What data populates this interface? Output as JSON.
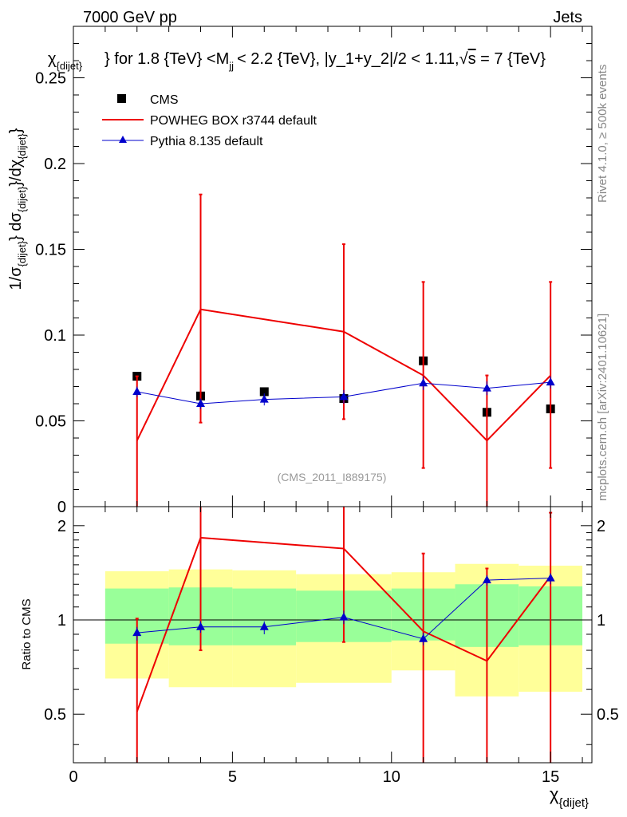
{
  "header": {
    "left": "7000 GeV pp",
    "right": "Jets"
  },
  "side": {
    "rivet": "Rivet 4.1.0, ≥ 500k events",
    "mcplots": "mcplots.cern.ch [arXiv:2401.10621]"
  },
  "chart_data": [
    {
      "id": "main",
      "type": "line",
      "title": "χ_{dijet} for 1.8 {TeV} <M_jj < 2.2 {TeV}, |y_1+y_2|/2 < 1.11, √s = 7 {TeV}",
      "title_parts": {
        "chi": "χ",
        "chi_sub": "{dijet}",
        "t1": "} for 1.8 {TeV} <M",
        "m_sub": "jj",
        "t2": "< 2.2 {TeV}, |y_1+y_2|/2 < 1.11,",
        "sqrt": "√",
        "s": "s",
        "t3": " = 7 {TeV}"
      },
      "ylabel": "1/σ_{dijet} dσ_{dijet}/dχ_{dijet}",
      "ylabel_parts": {
        "a": "1/σ",
        "a_sub": "{dijet}",
        "b": "} dσ",
        "b_sub": "{dijet}",
        "c": "}/dχ",
        "c_sub": "{dijet}",
        "d": "}"
      },
      "xlim": [
        0,
        16.3
      ],
      "ylim": [
        0,
        0.28
      ],
      "yticks": [
        0,
        0.05,
        0.1,
        0.15,
        0.2,
        0.25
      ],
      "ytick_labels": [
        "0",
        "0.05",
        "0.1",
        "0.15",
        "0.2",
        "0.25"
      ],
      "watermark": "(CMS_2011_I889175)",
      "legend": [
        "CMS",
        "POWHEG BOX r3744 default",
        "Pythia 8.135 default"
      ],
      "legend_position": "top-left",
      "series": [
        {
          "name": "CMS",
          "style": "markers",
          "color": "#000000",
          "x": [
            2,
            4,
            6,
            8.5,
            11,
            13,
            15
          ],
          "y": [
            0.076,
            0.0645,
            0.067,
            0.063,
            0.085,
            0.055,
            0.057
          ]
        },
        {
          "name": "POWHEG BOX r3744 default",
          "style": "line",
          "color": "#ee0000",
          "x": [
            2,
            4,
            8.5,
            11,
            13,
            15
          ],
          "y": [
            0.0385,
            0.115,
            0.102,
            0.0765,
            0.0385,
            0.0765
          ],
          "err_lo": [
            0.0,
            0.049,
            0.051,
            0.0225,
            0.0,
            0.0225
          ],
          "err_hi": [
            0.076,
            0.182,
            0.153,
            0.131,
            0.0765,
            0.131
          ]
        },
        {
          "name": "Pythia 8.135 default",
          "style": "line+triangles",
          "color": "#0000cc",
          "x": [
            2,
            4,
            6,
            8.5,
            11,
            13,
            15
          ],
          "y": [
            0.067,
            0.06,
            0.0625,
            0.064,
            0.072,
            0.069,
            0.0725
          ],
          "err_lo": [
            0.064,
            0.057,
            0.059,
            0.06,
            0.068,
            0.065,
            0.069
          ],
          "err_hi": [
            0.07,
            0.063,
            0.066,
            0.068,
            0.076,
            0.073,
            0.076
          ]
        }
      ]
    },
    {
      "id": "ratio",
      "type": "line",
      "ylabel": "Ratio to CMS",
      "xlabel": "χ_{dijet}",
      "xlabel_parts": {
        "chi": "χ",
        "sub": "{dijet}"
      },
      "xlim": [
        0,
        16.3
      ],
      "ylim": [
        0.35,
        2.3
      ],
      "xticks": [
        0,
        5,
        10,
        15
      ],
      "xtick_labels": [
        "0",
        "5",
        "10",
        "15"
      ],
      "yticks": [
        0.5,
        1,
        2
      ],
      "ytick_labels": [
        "0.5",
        "1",
        "2"
      ],
      "reference_line": 1,
      "bands": {
        "colors": {
          "outer": "#ffff99",
          "inner": "#99ff99"
        },
        "x_edges": [
          [
            1,
            3
          ],
          [
            3,
            5
          ],
          [
            5,
            7
          ],
          [
            7,
            10
          ],
          [
            10,
            12
          ],
          [
            12,
            14
          ],
          [
            14,
            16
          ]
        ],
        "outer_lo": [
          0.65,
          0.61,
          0.61,
          0.63,
          0.69,
          0.57,
          0.59
        ],
        "outer_hi": [
          1.43,
          1.45,
          1.44,
          1.4,
          1.42,
          1.51,
          1.49
        ],
        "inner_lo": [
          0.84,
          0.83,
          0.83,
          0.85,
          0.86,
          0.82,
          0.83
        ],
        "inner_hi": [
          1.26,
          1.27,
          1.26,
          1.24,
          1.26,
          1.3,
          1.28
        ]
      },
      "series": [
        {
          "name": "POWHEG BOX r3744 default",
          "color": "#ee0000",
          "x": [
            2,
            4,
            8.5,
            11,
            13,
            15
          ],
          "y": [
            0.51,
            1.83,
            1.69,
            0.92,
            0.74,
            1.38
          ],
          "err_lo": [
            0.0,
            0.8,
            0.85,
            0.0,
            0.0,
            0.0
          ],
          "err_hi": [
            1.01,
            2.3,
            2.3,
            1.63,
            1.46,
            2.2
          ]
        },
        {
          "name": "Pythia 8.135 default",
          "color": "#0000cc",
          "x": [
            2,
            4,
            6,
            8.5,
            11,
            13,
            15
          ],
          "y": [
            0.91,
            0.95,
            0.95,
            1.02,
            0.87,
            1.34,
            1.36
          ],
          "err_lo": [
            0.86,
            0.91,
            0.9,
            0.97,
            0.83,
            1.29,
            1.3
          ],
          "err_hi": [
            0.95,
            0.99,
            0.99,
            1.07,
            0.91,
            1.39,
            1.41
          ]
        }
      ]
    }
  ]
}
